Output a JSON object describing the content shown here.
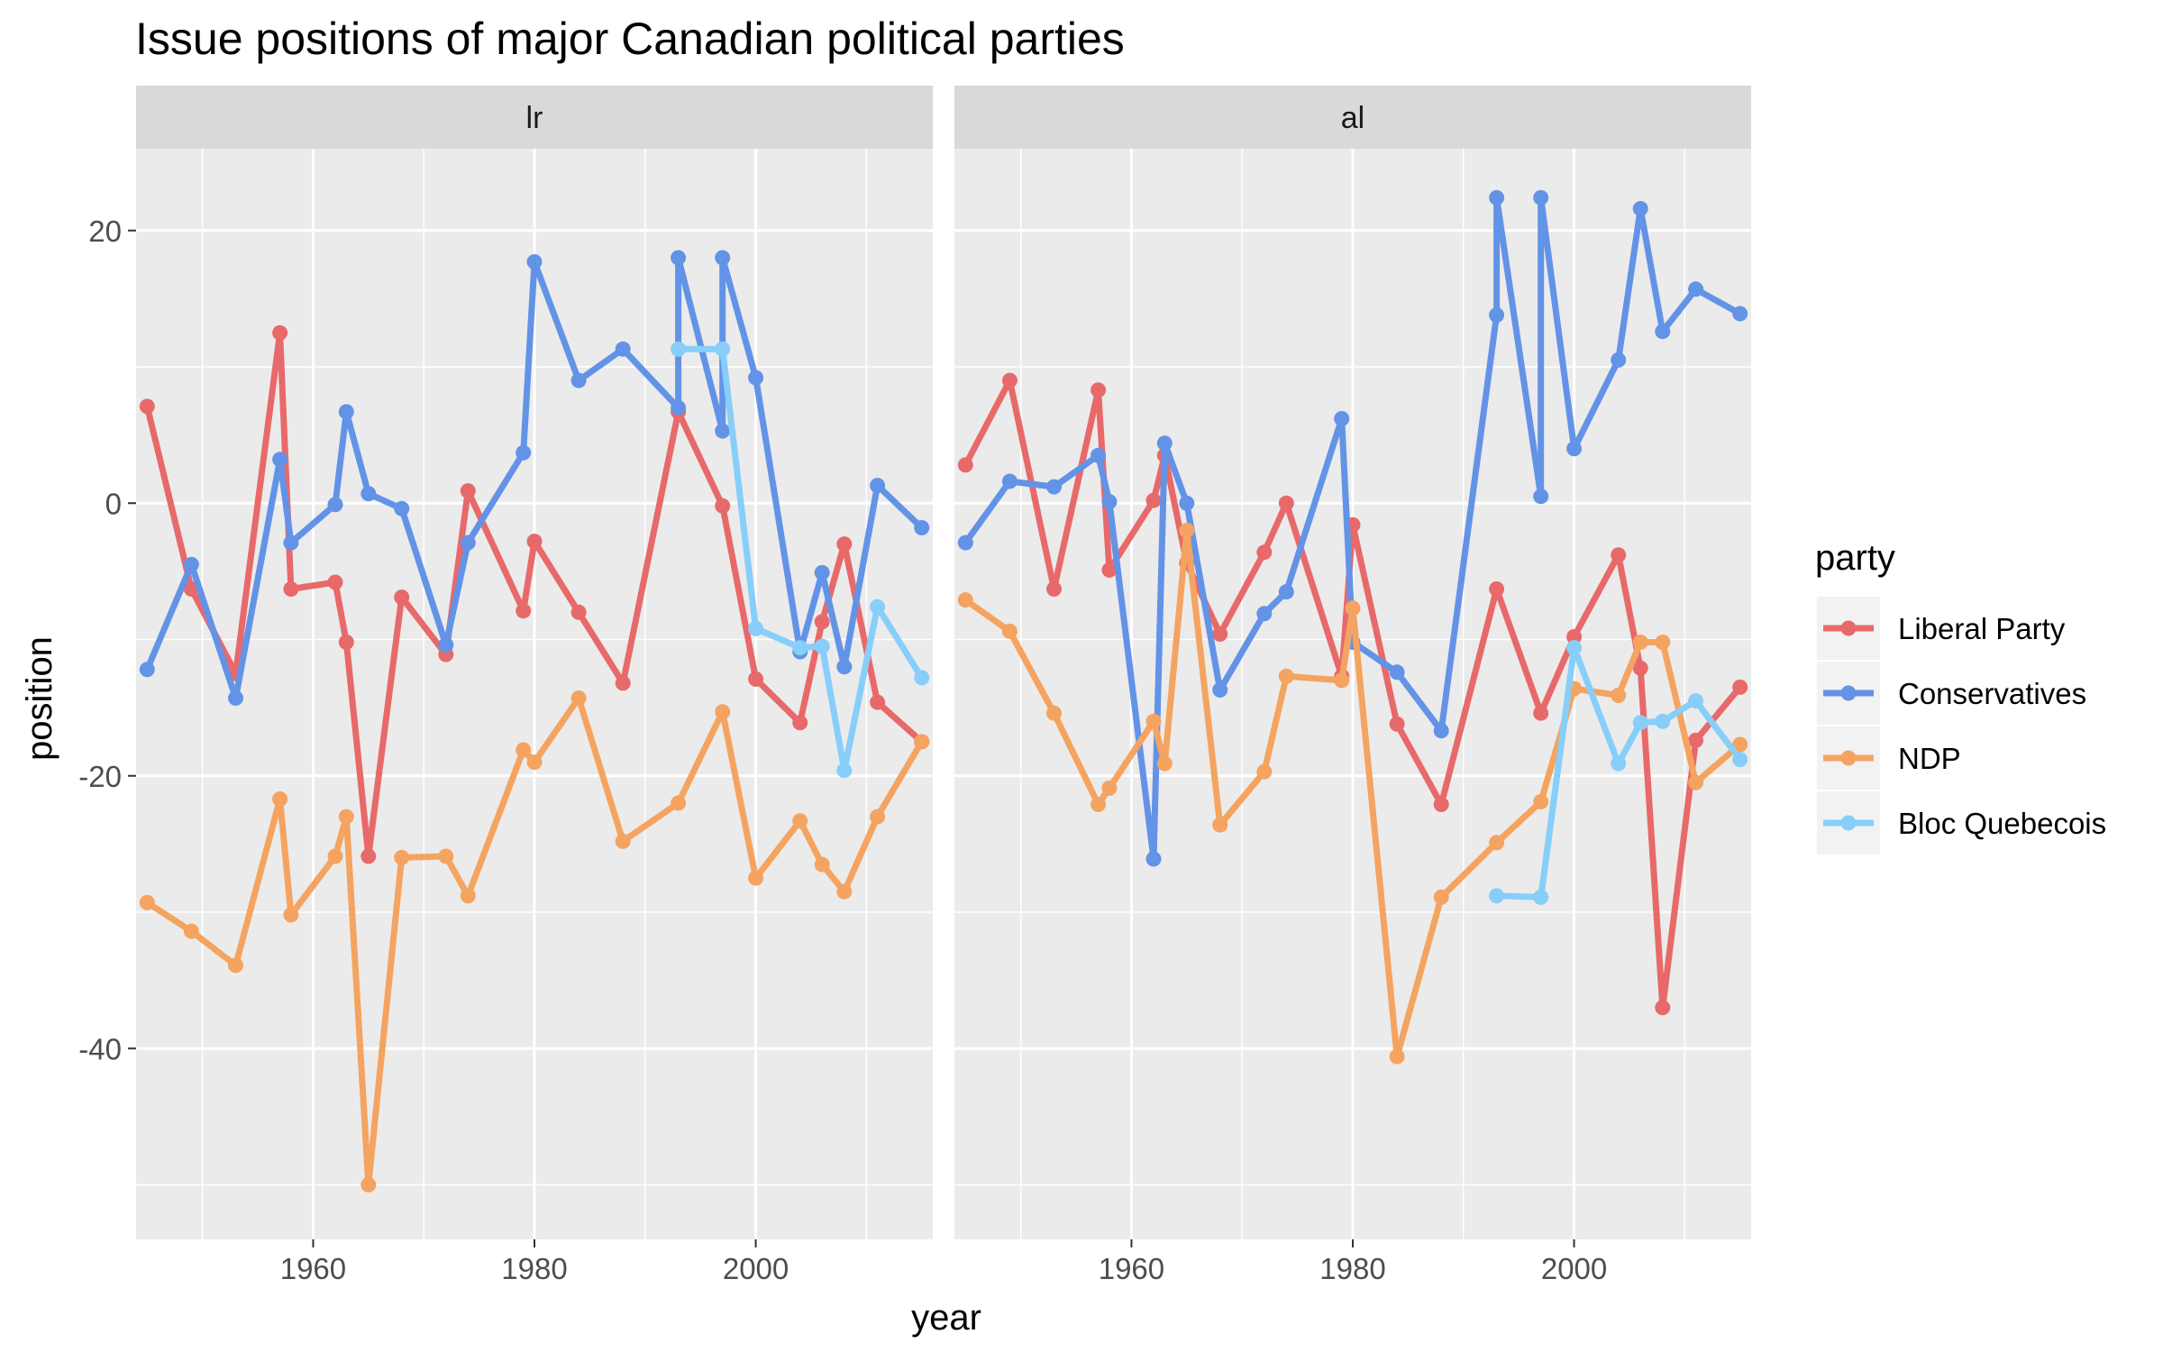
{
  "chart_data": {
    "type": "line",
    "title": "Issue positions of major Canadian political parties",
    "xlabel": "year",
    "ylabel": "position",
    "xlim": [
      1944,
      2016
    ],
    "ylim": [
      -54,
      26
    ],
    "x_ticks": [
      1960,
      1980,
      2000
    ],
    "y_ticks": [
      20,
      0,
      -20,
      -40
    ],
    "grid": true,
    "legend_title": "party",
    "legend_position": "right",
    "panels": [
      {
        "name": "lr",
        "series": [
          {
            "name": "Liberal Party",
            "color": "#E8696A",
            "points": [
              [
                1945,
                7.1
              ],
              [
                1949,
                -6.3
              ],
              [
                1953,
                -12.5
              ],
              [
                1957,
                12.5
              ],
              [
                1958,
                -6.3
              ],
              [
                1962,
                -5.8
              ],
              [
                1963,
                -10.2
              ],
              [
                1965,
                -25.9
              ],
              [
                1968,
                -6.9
              ],
              [
                1972,
                -11.1
              ],
              [
                1974,
                0.9
              ],
              [
                1979,
                -7.9
              ],
              [
                1980,
                -2.8
              ],
              [
                1984,
                -8.0
              ],
              [
                1988,
                -13.2
              ],
              [
                1993,
                6.7
              ],
              [
                1997,
                -0.2
              ],
              [
                2000,
                -12.9
              ],
              [
                2004,
                -16.1
              ],
              [
                2006,
                -8.7
              ],
              [
                2008,
                -3.0
              ],
              [
                2011,
                -14.6
              ],
              [
                2015,
                -17.5
              ]
            ]
          },
          {
            "name": "Conservatives",
            "color": "#6393E6",
            "points": [
              [
                1945,
                -12.2
              ],
              [
                1949,
                -4.5
              ],
              [
                1953,
                -14.3
              ],
              [
                1957,
                3.2
              ],
              [
                1958,
                -2.9
              ],
              [
                1962,
                -0.1
              ],
              [
                1963,
                6.7
              ],
              [
                1965,
                0.7
              ],
              [
                1968,
                -0.4
              ],
              [
                1972,
                -10.4
              ],
              [
                1974,
                -2.9
              ],
              [
                1979,
                3.7
              ],
              [
                1980,
                17.7
              ],
              [
                1984,
                9.0
              ],
              [
                1988,
                11.3
              ],
              [
                1993,
                7.0
              ],
              [
                1993,
                18.0
              ],
              [
                1997,
                5.3
              ],
              [
                1997,
                18.0
              ],
              [
                2000,
                9.2
              ],
              [
                2004,
                -10.9
              ],
              [
                2006,
                -5.1
              ],
              [
                2008,
                -12.0
              ],
              [
                2011,
                1.3
              ],
              [
                2015,
                -1.8
              ]
            ]
          },
          {
            "name": "NDP",
            "color": "#F4A460",
            "points": [
              [
                1945,
                -29.3
              ],
              [
                1949,
                -31.4
              ],
              [
                1953,
                -33.9
              ],
              [
                1957,
                -21.7
              ],
              [
                1958,
                -30.2
              ],
              [
                1962,
                -25.9
              ],
              [
                1963,
                -23.0
              ],
              [
                1965,
                -50.0
              ],
              [
                1968,
                -26.0
              ],
              [
                1972,
                -25.9
              ],
              [
                1974,
                -28.8
              ],
              [
                1979,
                -18.1
              ],
              [
                1980,
                -19.0
              ],
              [
                1984,
                -14.3
              ],
              [
                1988,
                -24.8
              ],
              [
                1993,
                -22.0
              ],
              [
                1997,
                -15.3
              ],
              [
                2000,
                -27.5
              ],
              [
                2004,
                -23.3
              ],
              [
                2006,
                -26.5
              ],
              [
                2008,
                -28.5
              ],
              [
                2011,
                -23.0
              ],
              [
                2015,
                -17.5
              ]
            ]
          },
          {
            "name": "Bloc Quebecois",
            "color": "#87CEFA",
            "points": [
              [
                1993,
                11.3
              ],
              [
                1997,
                11.3
              ],
              [
                2000,
                -9.2
              ],
              [
                2004,
                -10.6
              ],
              [
                2006,
                -10.5
              ],
              [
                2008,
                -19.6
              ],
              [
                2011,
                -7.6
              ],
              [
                2015,
                -12.8
              ]
            ]
          }
        ]
      },
      {
        "name": "al",
        "series": [
          {
            "name": "Liberal Party",
            "color": "#E8696A",
            "points": [
              [
                1945,
                2.8
              ],
              [
                1949,
                9.0
              ],
              [
                1953,
                -6.3
              ],
              [
                1957,
                8.3
              ],
              [
                1958,
                -4.9
              ],
              [
                1962,
                0.2
              ],
              [
                1963,
                3.5
              ],
              [
                1965,
                -4.4
              ],
              [
                1968,
                -9.6
              ],
              [
                1972,
                -3.6
              ],
              [
                1974,
                0.0
              ],
              [
                1979,
                -12.7
              ],
              [
                1980,
                -1.6
              ],
              [
                1984,
                -16.2
              ],
              [
                1988,
                -22.1
              ],
              [
                1993,
                -6.3
              ],
              [
                1997,
                -15.4
              ],
              [
                2000,
                -9.8
              ],
              [
                2004,
                -3.8
              ],
              [
                2006,
                -12.1
              ],
              [
                2008,
                -37.0
              ],
              [
                2011,
                -17.4
              ],
              [
                2015,
                -13.5
              ]
            ]
          },
          {
            "name": "Conservatives",
            "color": "#6393E6",
            "points": [
              [
                1945,
                -2.9
              ],
              [
                1949,
                1.6
              ],
              [
                1953,
                1.2
              ],
              [
                1957,
                3.5
              ],
              [
                1958,
                0.1
              ],
              [
                1962,
                -26.1
              ],
              [
                1963,
                4.4
              ],
              [
                1965,
                0.0
              ],
              [
                1968,
                -13.7
              ],
              [
                1972,
                -8.1
              ],
              [
                1974,
                -6.5
              ],
              [
                1979,
                6.2
              ],
              [
                1980,
                -10.2
              ],
              [
                1984,
                -12.4
              ],
              [
                1988,
                -16.7
              ],
              [
                1993,
                13.8
              ],
              [
                1993,
                22.4
              ],
              [
                1997,
                0.5
              ],
              [
                1997,
                22.4
              ],
              [
                2000,
                4.0
              ],
              [
                2004,
                10.5
              ],
              [
                2006,
                21.6
              ],
              [
                2008,
                12.6
              ],
              [
                2011,
                15.7
              ],
              [
                2015,
                13.9
              ]
            ]
          },
          {
            "name": "NDP",
            "color": "#F4A460",
            "points": [
              [
                1945,
                -7.1
              ],
              [
                1949,
                -9.4
              ],
              [
                1953,
                -15.4
              ],
              [
                1957,
                -22.1
              ],
              [
                1958,
                -20.9
              ],
              [
                1962,
                -16.0
              ],
              [
                1963,
                -19.1
              ],
              [
                1965,
                -2.0
              ],
              [
                1968,
                -23.6
              ],
              [
                1972,
                -19.7
              ],
              [
                1974,
                -12.7
              ],
              [
                1979,
                -13.0
              ],
              [
                1980,
                -7.7
              ],
              [
                1984,
                -40.6
              ],
              [
                1988,
                -28.9
              ],
              [
                1993,
                -24.9
              ],
              [
                1997,
                -21.9
              ],
              [
                2000,
                -13.6
              ],
              [
                2004,
                -14.1
              ],
              [
                2006,
                -10.2
              ],
              [
                2008,
                -10.2
              ],
              [
                2011,
                -20.5
              ],
              [
                2015,
                -17.7
              ]
            ]
          },
          {
            "name": "Bloc Quebecois",
            "color": "#87CEFA",
            "points": [
              [
                1993,
                -28.8
              ],
              [
                1997,
                -28.9
              ],
              [
                2000,
                -10.6
              ],
              [
                2004,
                -19.1
              ],
              [
                2006,
                -16.1
              ],
              [
                2008,
                -16.0
              ],
              [
                2011,
                -14.5
              ],
              [
                2015,
                -18.8
              ]
            ]
          }
        ]
      }
    ]
  }
}
